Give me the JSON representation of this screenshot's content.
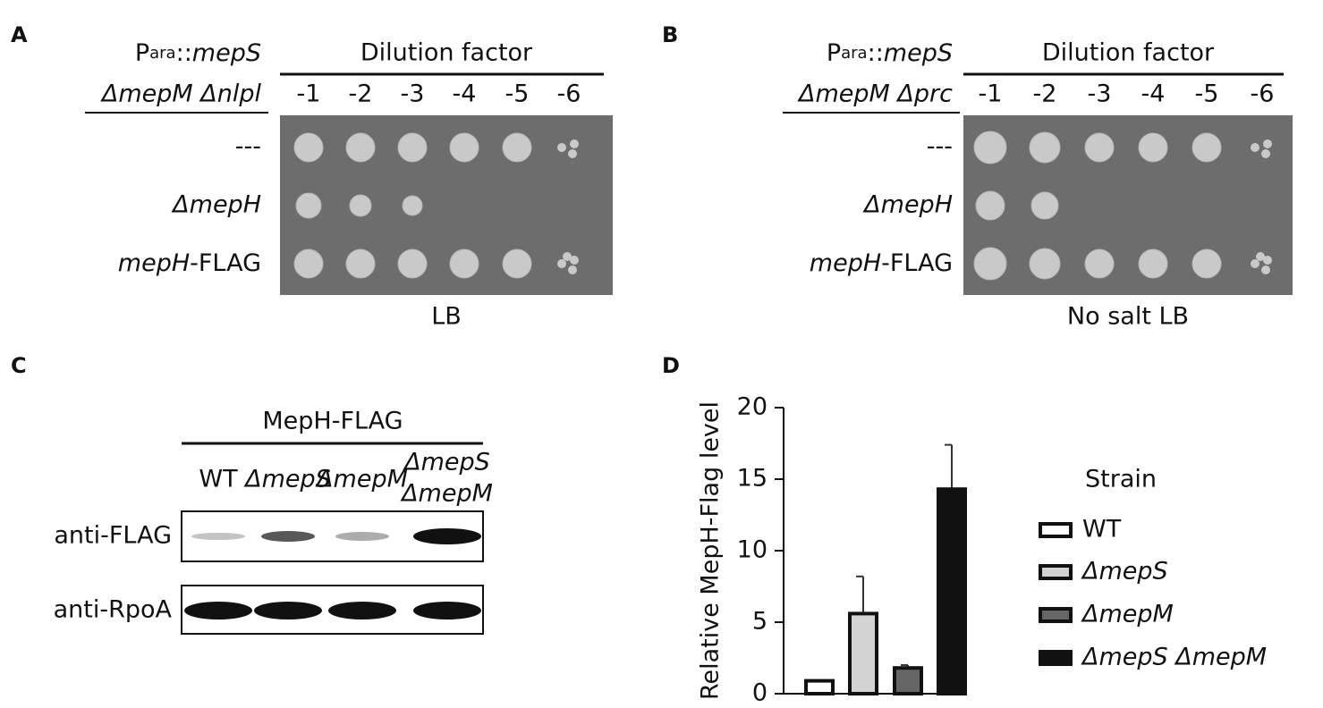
{
  "panels": {
    "A": {
      "letter": "A",
      "header": {
        "prefix": "P",
        "subscript": "ara",
        "separator": "::",
        "gene": "mepS",
        "strain": "ΔmepM Δnlpl"
      },
      "dilution_title": "Dilution factor",
      "dilutions": [
        "-1",
        "-2",
        "-3",
        "-4",
        "-5",
        "-6"
      ],
      "rows": [
        {
          "label": "---"
        },
        {
          "label": "ΔmepH"
        },
        {
          "gene": "mepH",
          "tag": "-FLAG"
        }
      ],
      "medium": "LB"
    },
    "B": {
      "letter": "B",
      "header": {
        "prefix": "P",
        "subscript": "ara",
        "separator": "::",
        "gene": "mepS",
        "strain": "ΔmepM Δprc"
      },
      "dilution_title": "Dilution factor",
      "dilutions": [
        "-1",
        "-2",
        "-3",
        "-4",
        "-5",
        "-6"
      ],
      "rows": [
        {
          "label": "---"
        },
        {
          "label": "ΔmepH"
        },
        {
          "gene": "mepH",
          "tag": "-FLAG"
        }
      ],
      "medium": "No salt LB"
    },
    "C": {
      "letter": "C",
      "title": "MepH-FLAG",
      "lanes": [
        "WT",
        "ΔmepS",
        "ΔmepM",
        "ΔmepS",
        "ΔmepM"
      ],
      "blots": [
        "anti-FLAG",
        "anti-RpoA"
      ]
    },
    "D": {
      "letter": "D"
    }
  },
  "chart_data": {
    "type": "bar",
    "ylabel": "Relative MepH-Flag level",
    "categories": [
      null,
      null,
      null,
      null
    ],
    "values": [
      0.9,
      5.6,
      1.8,
      14.3
    ],
    "errors": [
      0,
      2.6,
      0.2,
      3.1
    ],
    "colors": [
      "#ffffff",
      "#d3d3d3",
      "#666666",
      "#111111"
    ],
    "ylim": [
      0,
      20
    ],
    "yticks": [
      0,
      5,
      10,
      15,
      20
    ],
    "legend": {
      "title": "Strain",
      "names": [
        "WT",
        "ΔmepS",
        "ΔmepM",
        "ΔmepS ΔmepM"
      ]
    }
  }
}
